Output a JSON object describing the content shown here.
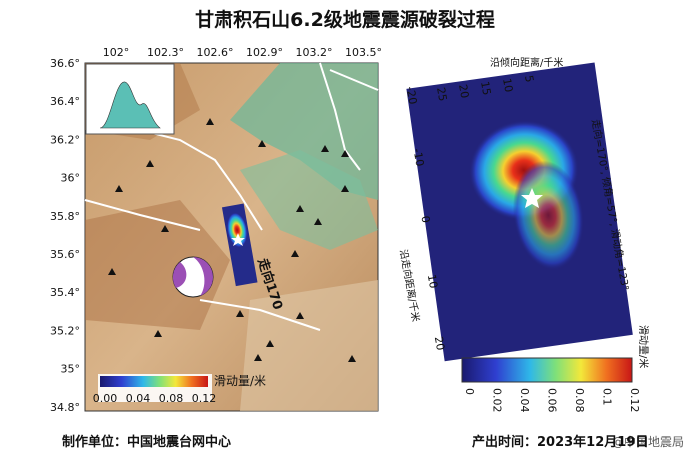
{
  "title": "甘肃积石山6.2级地震震源破裂过程",
  "map": {
    "lon_ticks": [
      "102°",
      "102.3°",
      "102.6°",
      "102.9°",
      "103.2°",
      "103.5°"
    ],
    "lat_ticks": [
      "36.6°",
      "36.4°",
      "36.2°",
      "36°",
      "35.8°",
      "35.6°",
      "35.4°",
      "35.2°",
      "35°",
      "34.8°"
    ],
    "strike_label": "走向170",
    "colorbar": {
      "ticks": [
        "0.00",
        "0.04",
        "0.08",
        "0.12"
      ],
      "label": "滑动量/米"
    }
  },
  "slip_model": {
    "dip_axis_label": "沿倾向距离/千米",
    "dip_ticks": [
      "25",
      "20",
      "15",
      "10",
      "5"
    ],
    "strike_axis_label": "沿走向距离/千米",
    "strike_ticks": [
      "-20",
      "-10",
      "0",
      "10",
      "20"
    ],
    "parameters": "走向=170°, 倾角=57°, 滑动角=123°",
    "colorbar": {
      "ticks": [
        "0",
        "0.02",
        "0.04",
        "0.06",
        "0.08",
        "0.1",
        "0.12"
      ],
      "label": "滑动量/米"
    }
  },
  "footer": {
    "producer": "制作单位：中国地震台网中心",
    "time": "产出时间：2023年12月19日",
    "watermark": "@中国地震局"
  }
}
